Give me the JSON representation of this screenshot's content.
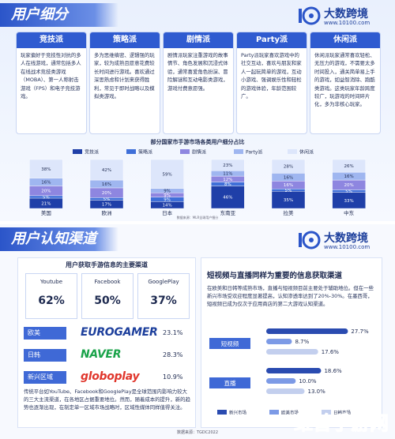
{
  "section1": {
    "title": "用户细分",
    "logo": {
      "brand": "大数跨境",
      "url": "www.10100.com"
    },
    "cards": [
      {
        "title": "竞技派",
        "text": "玩家偏好于竞技性对抗的多人在线游戏，通常包括多人在线战术竞技类游戏（MOBA）、第一人称射击游戏（FPS）和电子竞技游戏。"
      },
      {
        "title": "策略派",
        "text": "多为思维缜密、逻辑强的玩家，较为成熟且愿意花费较长时间进行游戏。喜欢通过深思熟虑和计划来获得胜利，常见于即时战略以及模拟类游戏。"
      },
      {
        "title": "剧情派",
        "text": "剧情派玩家注重游戏的故事情节、角色发展和沉浸式体验，通常喜爱角色扮演、冒险解谜和互动电影类游戏，游戏付费意愿强。"
      },
      {
        "title": "Party派",
        "text": "Party派玩家喜欢游戏中的社交互动，喜欢与朋友和家人一起玩简单的游戏，互动小游戏、强调娱乐性和轻松的游戏体验，年龄范围较广。"
      },
      {
        "title": "休闲派",
        "text": "休闲派玩家通常喜欢轻松、无压力的游戏，不需要太多时间投入，通关简单易上手的游戏，如益智消除、跑酷类游戏。这类玩家年龄跨度较广，玩游戏的时间碎片化，多为非核心玩家。"
      }
    ],
    "chart": {
      "type": "bar",
      "stacked": true,
      "title": "部分国家市手游市场各类用户细分占比",
      "categories": [
        "美国",
        "欧洲",
        "日本",
        "东南亚",
        "拉美",
        "中东"
      ],
      "ylim": [
        0,
        100
      ],
      "series": [
        {
          "name": "竞技派",
          "color": "#1f3fa8",
          "values": [
            21,
            17,
            14,
            46,
            35,
            33
          ],
          "value_labels": [
            "21%",
            "17%",
            "14%",
            "46%",
            "35%",
            "33%"
          ]
        },
        {
          "name": "策略派",
          "color": "#3f6fd8",
          "values": [
            5,
            5,
            9,
            8,
            5,
            5
          ],
          "value_labels": [
            "5%",
            "5%",
            "9%",
            "8%",
            "5%",
            "5%"
          ]
        },
        {
          "name": "剧情派",
          "color": "#8e86e0",
          "values": [
            20,
            20,
            9,
            12,
            16,
            20
          ],
          "value_labels": [
            "20%",
            "20%",
            "9%",
            "12%",
            "16%",
            "20%"
          ]
        },
        {
          "name": "Party派",
          "color": "#9fb6f0",
          "values": [
            16,
            16,
            9,
            11,
            16,
            16
          ],
          "value_labels": [
            "16%",
            "16%",
            "9%",
            "11%",
            "16%",
            "16%"
          ]
        },
        {
          "name": "休闲派",
          "color": "#dde6fb",
          "values": [
            38,
            42,
            59,
            23,
            28,
            26
          ],
          "value_labels": [
            "38%",
            "42%",
            "59%",
            "23%",
            "28%",
            "26%"
          ]
        }
      ],
      "source": "数据来源：MLR全球用户细分"
    }
  },
  "section2": {
    "title": "用户认知渠道",
    "logo": {
      "brand": "大数跨境",
      "url": "www.10100.com"
    },
    "left": {
      "heading": "用户获取手游信息的主要渠道",
      "channels": [
        {
          "name": "Youtube",
          "share": "62%"
        },
        {
          "name": "Facebook",
          "share": "50%"
        },
        {
          "name": "GooglePlay",
          "share": "37%"
        }
      ],
      "regions": [
        {
          "region": "欧美",
          "media": "EUROGAMER",
          "share": "23.1%"
        },
        {
          "region": "日韩",
          "media": "NAVER",
          "share": "28.3%"
        },
        {
          "region": "新兴区域",
          "media": "globoplay",
          "share": "10.9%"
        }
      ],
      "text": "传统平台如YouTube、Facebook和GooglePlay是全球范围内影响力较大的三大主流渠道，在各地区占据重要地位。然而，随着成本的提升，新的趋势也逐渐出现，在制定单一区域市场战略时，区域性媒体同样值得关注。"
    },
    "right": {
      "heading": "短视频与直播同样为重要的信息获取渠道",
      "text": "在欧美和日韩等成熟市场，直播与短视频目前主要处于辅助地位。但在一些新兴市场受欢迎程度显著提高，认知渗透率达到了20%-30%。在墨西哥，短视频已成为仅次于应用商店的第二大游戏认知渠道。",
      "chart": {
        "type": "hbar",
        "categories": [
          "短视频",
          "直播"
        ],
        "xlim": [
          0,
          30
        ],
        "series": [
          {
            "name": "新兴市场",
            "color": "#2a4bb0",
            "values": [
              27.7,
              18.6
            ],
            "value_labels": [
              "27.7%",
              "18.6%"
            ]
          },
          {
            "name": "欧美市场",
            "color": "#7c9ae6",
            "values": [
              8.7,
              10.0
            ],
            "value_labels": [
              "8.7%",
              "10.0%"
            ]
          },
          {
            "name": "日韩市场",
            "color": "#c3cfee",
            "values": [
              17.6,
              13.0
            ],
            "value_labels": [
              "17.6%",
              "13.0%"
            ]
          }
        ]
      }
    },
    "source": "数据来源：TGDC2022"
  },
  "watermark": "维普手游网"
}
